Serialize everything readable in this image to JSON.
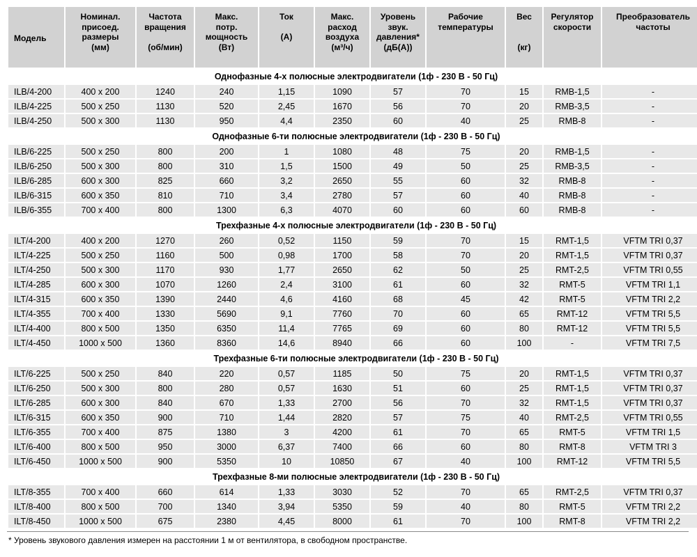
{
  "table": {
    "columns": [
      {
        "label": "Модель"
      },
      {
        "label": "Номинал.\nприсоед.\nразмеры\n(мм)"
      },
      {
        "label": "Частота\nвращения\n\n(об/мин)"
      },
      {
        "label": "Макс.\nпотр.\nмощность\n(Вт)"
      },
      {
        "label": "Ток\n\n(А)"
      },
      {
        "label": "Макс.\nрасход\nвоздуха\n(м³/ч)"
      },
      {
        "label": "Уровень\nзвук.\nдавления*\n(дБ(А))"
      },
      {
        "label": "Рабочие\nтемпературы"
      },
      {
        "label": "Вес\n\n\n(кг)"
      },
      {
        "label": "Регулятор\nскорости"
      },
      {
        "label": "Преобразователь\nчастоты"
      }
    ],
    "sections": [
      {
        "title": "Однофазные 4-х полюсные электродвигатели (1ф - 230 В - 50 Гц)",
        "rows": [
          [
            "ILB/4-200",
            "400 x 200",
            "1240",
            "240",
            "1,15",
            "1090",
            "57",
            "70",
            "15",
            "RMB-1,5",
            "-"
          ],
          [
            "ILB/4-225",
            "500 x 250",
            "1130",
            "520",
            "2,45",
            "1670",
            "56",
            "70",
            "20",
            "RMB-3,5",
            "-"
          ],
          [
            "ILB/4-250",
            "500 x 300",
            "1130",
            "950",
            "4,4",
            "2350",
            "60",
            "40",
            "25",
            "RMB-8",
            "-"
          ]
        ]
      },
      {
        "title": "Однофазные 6-ти полюсные электродвигатели (1ф - 230 В - 50 Гц)",
        "rows": [
          [
            "ILB/6-225",
            "500 x 250",
            "800",
            "200",
            "1",
            "1080",
            "48",
            "75",
            "20",
            "RMB-1,5",
            "-"
          ],
          [
            "ILB/6-250",
            "500 x 300",
            "800",
            "310",
            "1,5",
            "1500",
            "49",
            "50",
            "25",
            "RMB-3,5",
            "-"
          ],
          [
            "ILB/6-285",
            "600 x 300",
            "825",
            "660",
            "3,2",
            "2650",
            "55",
            "60",
            "32",
            "RMB-8",
            "-"
          ],
          [
            "ILB/6-315",
            "600 x 350",
            "810",
            "710",
            "3,4",
            "2780",
            "57",
            "60",
            "40",
            "RMB-8",
            "-"
          ],
          [
            "ILB/6-355",
            "700 x 400",
            "800",
            "1300",
            "6,3",
            "4070",
            "60",
            "60",
            "60",
            "RMB-8",
            "-"
          ]
        ]
      },
      {
        "title": "Трехфазные 4-х полюсные электродвигатели (1ф - 230 В - 50 Гц)",
        "rows": [
          [
            "ILT/4-200",
            "400 x 200",
            "1270",
            "260",
            "0,52",
            "1150",
            "59",
            "70",
            "15",
            "RMT-1,5",
            "VFTM TRI 0,37"
          ],
          [
            "ILT/4-225",
            "500 x 250",
            "1160",
            "500",
            "0,98",
            "1700",
            "58",
            "70",
            "20",
            "RMT-1,5",
            "VFTM TRI 0,37"
          ],
          [
            "ILT/4-250",
            "500 x 300",
            "1170",
            "930",
            "1,77",
            "2650",
            "62",
            "50",
            "25",
            "RMT-2,5",
            "VFTM TRI 0,55"
          ],
          [
            "ILT/4-285",
            "600 x 300",
            "1070",
            "1260",
            "2,4",
            "3100",
            "61",
            "60",
            "32",
            "RMT-5",
            "VFTM TRI 1,1"
          ],
          [
            "ILT/4-315",
            "600 x 350",
            "1390",
            "2440",
            "4,6",
            "4160",
            "68",
            "45",
            "42",
            "RMT-5",
            "VFTM TRI 2,2"
          ],
          [
            "ILT/4-355",
            "700 x 400",
            "1330",
            "5690",
            "9,1",
            "7760",
            "70",
            "60",
            "65",
            "RMT-12",
            "VFTM TRI 5,5"
          ],
          [
            "ILT/4-400",
            "800 x 500",
            "1350",
            "6350",
            "11,4",
            "7765",
            "69",
            "60",
            "80",
            "RMT-12",
            "VFTM TRI 5,5"
          ],
          [
            "ILT/4-450",
            "1000 x 500",
            "1360",
            "8360",
            "14,6",
            "8940",
            "66",
            "60",
            "100",
            "-",
            "VFTM TRI 7,5"
          ]
        ]
      },
      {
        "title": "Трехфазные 6-ти полюсные электродвигатели (1ф - 230 В - 50 Гц)",
        "rows": [
          [
            "ILT/6-225",
            "500 x 250",
            "840",
            "220",
            "0,57",
            "1185",
            "50",
            "75",
            "20",
            "RMT-1,5",
            "VFTM TRI 0,37"
          ],
          [
            "ILT/6-250",
            "500 x 300",
            "800",
            "280",
            "0,57",
            "1630",
            "51",
            "60",
            "25",
            "RMT-1,5",
            "VFTM TRI 0,37"
          ],
          [
            "ILT/6-285",
            "600 x 300",
            "840",
            "670",
            "1,33",
            "2700",
            "56",
            "70",
            "32",
            "RMT-1,5",
            "VFTM TRI 0,37"
          ],
          [
            "ILT/6-315",
            "600 x 350",
            "900",
            "710",
            "1,44",
            "2820",
            "57",
            "75",
            "40",
            "RMT-2,5",
            "VFTM TRI 0,55"
          ],
          [
            "ILT/6-355",
            "700 x 400",
            "875",
            "1380",
            "3",
            "4200",
            "61",
            "70",
            "65",
            "RMT-5",
            "VFTM TRI 1,5"
          ],
          [
            "ILT/6-400",
            "800 x 500",
            "950",
            "3000",
            "6,37",
            "7400",
            "66",
            "60",
            "80",
            "RMT-8",
            "VFTM TRI 3"
          ],
          [
            "ILT/6-450",
            "1000 x 500",
            "900",
            "5350",
            "10",
            "10850",
            "67",
            "40",
            "100",
            "RMT-12",
            "VFTM TRI 5,5"
          ]
        ]
      },
      {
        "title": "Трехфазные 8-ми полюсные электродвигатели (1ф - 230 В - 50 Гц)",
        "rows": [
          [
            "ILT/8-355",
            "700 x 400",
            "660",
            "614",
            "1,33",
            "3030",
            "52",
            "70",
            "65",
            "RMT-2,5",
            "VFTM TRI 0,37"
          ],
          [
            "ILT/8-400",
            "800 x 500",
            "700",
            "1340",
            "3,94",
            "5350",
            "59",
            "40",
            "80",
            "RMT-5",
            "VFTM TRI 2,2"
          ],
          [
            "ILT/8-450",
            "1000 x 500",
            "675",
            "2380",
            "4,45",
            "8000",
            "61",
            "70",
            "100",
            "RMT-8",
            "VFTM TRI 2,2"
          ]
        ]
      }
    ],
    "footnote": "* Уровень звукового давления измерен на расстоянии 1 м от вентилятора, в свободном пространстве.",
    "colors": {
      "header_bg": "#d2d2d2",
      "row_bg": "#e8e8e8",
      "section_bg": "#ffffff",
      "text": "#000000"
    }
  }
}
